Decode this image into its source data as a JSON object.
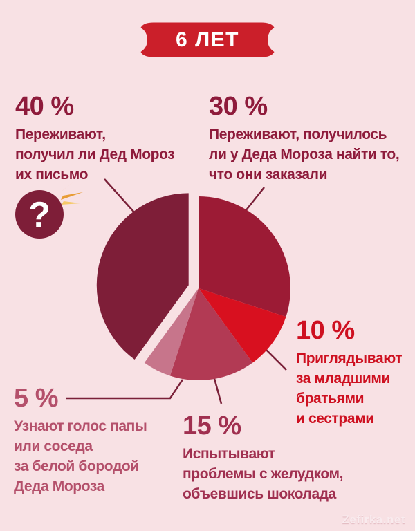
{
  "page": {
    "background": "#f8e1e4"
  },
  "banner": {
    "label": "6 ЛЕТ",
    "bg_color": "#cb1f2a",
    "text_color": "#ffffff"
  },
  "annotations": {
    "pct40": {
      "percent": "40 %",
      "text": "Переживают,\nполучил ли Дед Мороз\nих письмо",
      "color": "#8e1b3b"
    },
    "pct30": {
      "percent": "30 %",
      "text": "Переживают, получилось\nли у Деда Мороза найти то,\nчто они заказали",
      "color": "#8e1b3b"
    },
    "pct10": {
      "percent": "10 %",
      "text": "Приглядывают\nза младшими\nбратьями\nи сестрами",
      "color": "#ce1020"
    },
    "pct15": {
      "percent": "15 %",
      "text": "Испытывают\nпроблемы с желудком,\nобъевшись шоколада",
      "color": "#a03050"
    },
    "pct5": {
      "percent": "5 %",
      "text": "Узнают голос папы\nили соседа\nза белой бородой\nДеда Мороза",
      "color": "#b4506b"
    }
  },
  "question_icon": {
    "glyph": "?",
    "circle_color": "#7e1e38",
    "ray_color": "#e89c35",
    "ray_color_light": "#f5c969"
  },
  "callout_line_color": "#7a2038",
  "watermark": {
    "label": "Zefirka.net"
  },
  "chart_data": {
    "type": "pie",
    "title": "6 ЛЕТ",
    "unit": "%",
    "start_angle_deg": 0,
    "direction": "clockwise",
    "labels_position": "external-callouts",
    "legend": false,
    "background": "#f8e1e4",
    "slices": [
      {
        "label": "Переживают, получилось ли у Деда Мороза найти то, что они заказали",
        "value": 30,
        "color": "#9c1b35"
      },
      {
        "label": "Приглядывают за младшими братьями и сестрами",
        "value": 10,
        "color": "#d8101f"
      },
      {
        "label": "Испытывают проблемы с желудком, объевшись шоколада",
        "value": 15,
        "color": "#b23a54"
      },
      {
        "label": "Узнают голос папы или соседа за белой бородой Деда Мороза",
        "value": 5,
        "color": "#c7758b"
      },
      {
        "label": "Переживают, получил ли Дед Мороз их письмо",
        "value": 40,
        "color": "#7e1e38",
        "exploded": true
      }
    ]
  }
}
